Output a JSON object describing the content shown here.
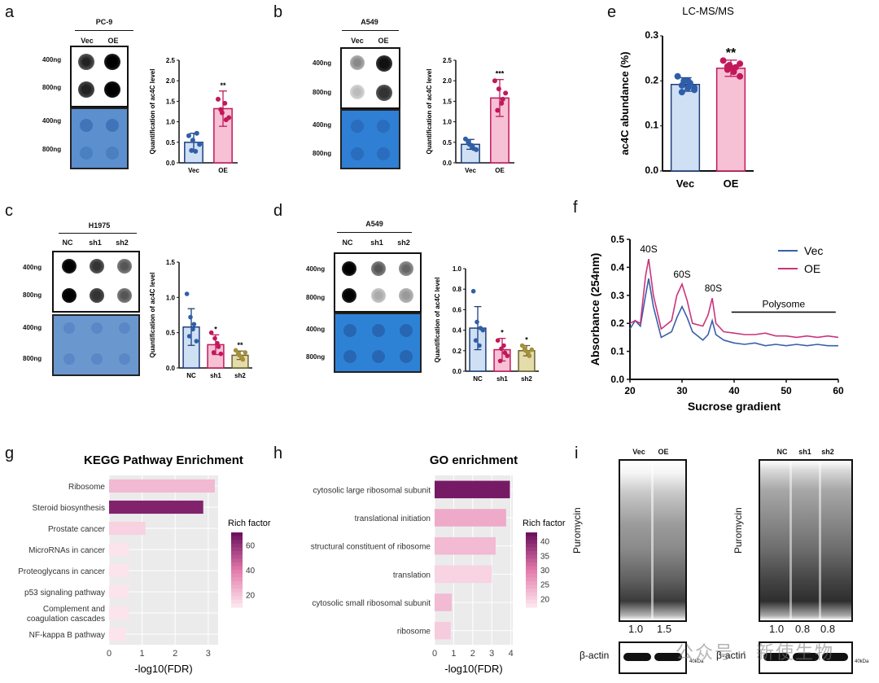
{
  "panels": {
    "a": {
      "letter": "a",
      "cell": "PC-9",
      "groups": [
        "Vec",
        "OE"
      ],
      "amounts": [
        "400ng",
        "800ng"
      ],
      "ylabel": "Quantification of ac4C level",
      "sig": "**",
      "chart_data": {
        "type": "bar",
        "categories": [
          "Vec",
          "OE"
        ],
        "values": [
          0.5,
          1.32
        ],
        "errors": [
          0.22,
          0.43
        ],
        "ylim": [
          0,
          2.5
        ],
        "yticks": [
          0.0,
          0.5,
          1.0,
          1.5,
          2.0,
          2.5
        ],
        "points": [
          [
            0.66,
            0.55,
            0.72,
            0.3,
            0.28,
            0.45
          ],
          [
            1.55,
            1.22,
            1.05,
            1.3,
            1.45,
            1.1
          ]
        ]
      }
    },
    "b": {
      "letter": "b",
      "cell": "A549",
      "groups": [
        "Vec",
        "OE"
      ],
      "amounts": [
        "400ng",
        "800ng"
      ],
      "ylabel": "Quantification of ac4C level",
      "sig": "***",
      "chart_data": {
        "type": "bar",
        "categories": [
          "Vec",
          "OE"
        ],
        "values": [
          0.45,
          1.58
        ],
        "errors": [
          0.12,
          0.45
        ],
        "ylim": [
          0,
          2.5
        ],
        "yticks": [
          0.0,
          0.5,
          1.0,
          1.5,
          2.0,
          2.5
        ],
        "points": [
          [
            0.58,
            0.45,
            0.35,
            0.5,
            0.42,
            0.32
          ],
          [
            2.0,
            1.8,
            1.55,
            1.28,
            1.45,
            1.7
          ]
        ]
      }
    },
    "c": {
      "letter": "c",
      "cell": "H1975",
      "groups": [
        "NC",
        "sh1",
        "sh2"
      ],
      "amounts": [
        "400ng",
        "800ng"
      ],
      "ylabel": "Quantification of ac4C level",
      "sigs": [
        "",
        "*",
        "**"
      ],
      "chart_data": {
        "type": "bar",
        "categories": [
          "NC",
          "sh1",
          "sh2"
        ],
        "values": [
          0.58,
          0.33,
          0.18
        ],
        "errors": [
          0.26,
          0.14,
          0.06
        ],
        "ylim": [
          0,
          1.5
        ],
        "yticks": [
          0.0,
          0.5,
          1.0,
          1.5
        ],
        "points": [
          [
            1.05,
            0.72,
            0.62,
            0.45,
            0.55,
            0.38
          ],
          [
            0.5,
            0.42,
            0.3,
            0.22,
            0.35,
            0.2
          ],
          [
            0.25,
            0.18,
            0.12,
            0.2,
            0.15,
            0.22
          ]
        ]
      }
    },
    "d": {
      "letter": "d",
      "cell": "A549",
      "groups": [
        "NC",
        "sh1",
        "sh2"
      ],
      "amounts": [
        "400ng",
        "800ng"
      ],
      "ylabel": "Quantification of ac4C level",
      "sigs": [
        "",
        "*",
        "*"
      ],
      "chart_data": {
        "type": "bar",
        "categories": [
          "NC",
          "sh1",
          "sh2"
        ],
        "values": [
          0.42,
          0.21,
          0.2
        ],
        "errors": [
          0.21,
          0.11,
          0.05
        ],
        "ylim": [
          0,
          1.0
        ],
        "yticks": [
          0.0,
          0.2,
          0.4,
          0.6,
          0.8,
          1.0
        ],
        "points": [
          [
            0.78,
            0.48,
            0.42,
            0.3,
            0.25,
            0.4
          ],
          [
            0.3,
            0.22,
            0.18,
            0.1,
            0.25,
            0.15
          ],
          [
            0.25,
            0.2,
            0.15,
            0.22,
            0.18,
            0.21
          ]
        ]
      }
    },
    "e": {
      "letter": "e",
      "title": "LC-MS/MS",
      "ylabel": "ac4C abundance (%)",
      "sig": "**",
      "chart_data": {
        "type": "bar",
        "categories": [
          "Vec",
          "OE"
        ],
        "values": [
          0.192,
          0.228
        ],
        "errors": [
          0.015,
          0.018
        ],
        "ylim": [
          0,
          0.3
        ],
        "yticks": [
          0.0,
          0.1,
          0.2,
          0.3
        ],
        "points": [
          [
            0.21,
            0.2,
            0.195,
            0.19,
            0.185,
            0.18,
            0.175,
            0.2,
            0.185
          ],
          [
            0.245,
            0.235,
            0.23,
            0.225,
            0.22,
            0.21,
            0.232,
            0.228,
            0.238
          ]
        ]
      }
    },
    "f": {
      "letter": "f",
      "xlabel": "Sucrose gradient",
      "ylabel": "Absorbance (254nm)",
      "peaks": [
        "40S",
        "60S",
        "80S"
      ],
      "polysome": "Polysome",
      "chart_data": {
        "type": "line",
        "xlim": [
          20,
          60
        ],
        "ylim": [
          0.0,
          0.5
        ],
        "xticks": [
          20,
          30,
          40,
          50,
          60
        ],
        "yticks": [
          0.0,
          0.1,
          0.2,
          0.3,
          0.4,
          0.5
        ],
        "series": [
          {
            "name": "Vec",
            "color": "#3a5fa8",
            "x": [
              20,
              21,
              22,
              23,
              23.6,
              24.5,
              26,
              28,
              29,
              30,
              31,
              32,
              34,
              35,
              35.8,
              36.5,
              38,
              40,
              42,
              44,
              46,
              48,
              50,
              52,
              54,
              56,
              58,
              60
            ],
            "y": [
              0.18,
              0.21,
              0.19,
              0.3,
              0.36,
              0.26,
              0.15,
              0.17,
              0.22,
              0.26,
              0.22,
              0.17,
              0.14,
              0.16,
              0.21,
              0.16,
              0.14,
              0.13,
              0.125,
              0.13,
              0.12,
              0.125,
              0.12,
              0.125,
              0.12,
              0.125,
              0.12,
              0.12
            ]
          },
          {
            "name": "OE",
            "color": "#c9357a",
            "x": [
              20,
              21,
              22,
              23,
              23.6,
              24.5,
              26,
              28,
              29,
              30,
              31,
              32,
              34,
              35,
              35.8,
              36.5,
              38,
              40,
              42,
              44,
              46,
              48,
              50,
              52,
              54,
              56,
              58,
              60
            ],
            "y": [
              0.2,
              0.21,
              0.2,
              0.37,
              0.43,
              0.3,
              0.18,
              0.21,
              0.3,
              0.34,
              0.28,
              0.2,
              0.19,
              0.23,
              0.29,
              0.2,
              0.17,
              0.165,
              0.16,
              0.16,
              0.165,
              0.155,
              0.155,
              0.15,
              0.155,
              0.15,
              0.155,
              0.15
            ]
          }
        ]
      }
    },
    "g": {
      "letter": "g",
      "title": "KEGG Pathway Enrichment",
      "xlabel": "-log10(FDR)",
      "legend_title": "Rich factor",
      "chart_data": {
        "type": "bar",
        "orientation": "horizontal",
        "categories": [
          "Ribosome",
          "Steroid biosynthesis",
          "Prostate cancer",
          "MicroRNAs in cancer",
          "Proteoglycans in cancer",
          "p53 signaling pathway",
          "Complement and coagulation cascades",
          "NF-kappa B pathway"
        ],
        "values": [
          3.2,
          2.85,
          1.1,
          0.6,
          0.6,
          0.6,
          0.6,
          0.5
        ],
        "rich_factor": [
          22,
          65,
          15,
          10,
          10,
          10,
          10,
          10
        ],
        "xlim": [
          0,
          3.3
        ],
        "xticks": [
          0,
          1,
          2,
          3
        ],
        "color_ticks": [
          20,
          40,
          60
        ],
        "color_range": [
          10,
          70
        ]
      }
    },
    "h": {
      "letter": "h",
      "title": "GO enrichment",
      "xlabel": "-log10(FDR)",
      "legend_title": "Rich factor",
      "chart_data": {
        "type": "bar",
        "orientation": "horizontal",
        "categories": [
          "cytosolic large ribosomal subunit",
          "translational initiation",
          "structural constituent of ribosome",
          "translation",
          "cytosolic small ribosomal subunit",
          "ribosome"
        ],
        "values": [
          3.95,
          3.75,
          3.2,
          3.0,
          0.9,
          0.85
        ],
        "rich_factor": [
          42,
          24,
          22,
          19,
          22,
          20
        ],
        "xlim": [
          0,
          4.1
        ],
        "xticks": [
          0,
          1,
          2,
          3,
          4
        ],
        "color_ticks": [
          20,
          25,
          30,
          35,
          40
        ],
        "color_range": [
          17,
          43
        ]
      }
    },
    "i": {
      "letter": "i",
      "left_groups": [
        "Vec",
        "OE"
      ],
      "right_groups": [
        "NC",
        "sh1",
        "sh2"
      ],
      "puromycin": "Puromycin",
      "actin": "β-actin",
      "kda": "40kDa",
      "left_values": [
        "1.0",
        "1.5"
      ],
      "right_values": [
        "1.0",
        "0.8",
        "0.8"
      ]
    }
  },
  "watermark": "公众号 · 新使生物"
}
